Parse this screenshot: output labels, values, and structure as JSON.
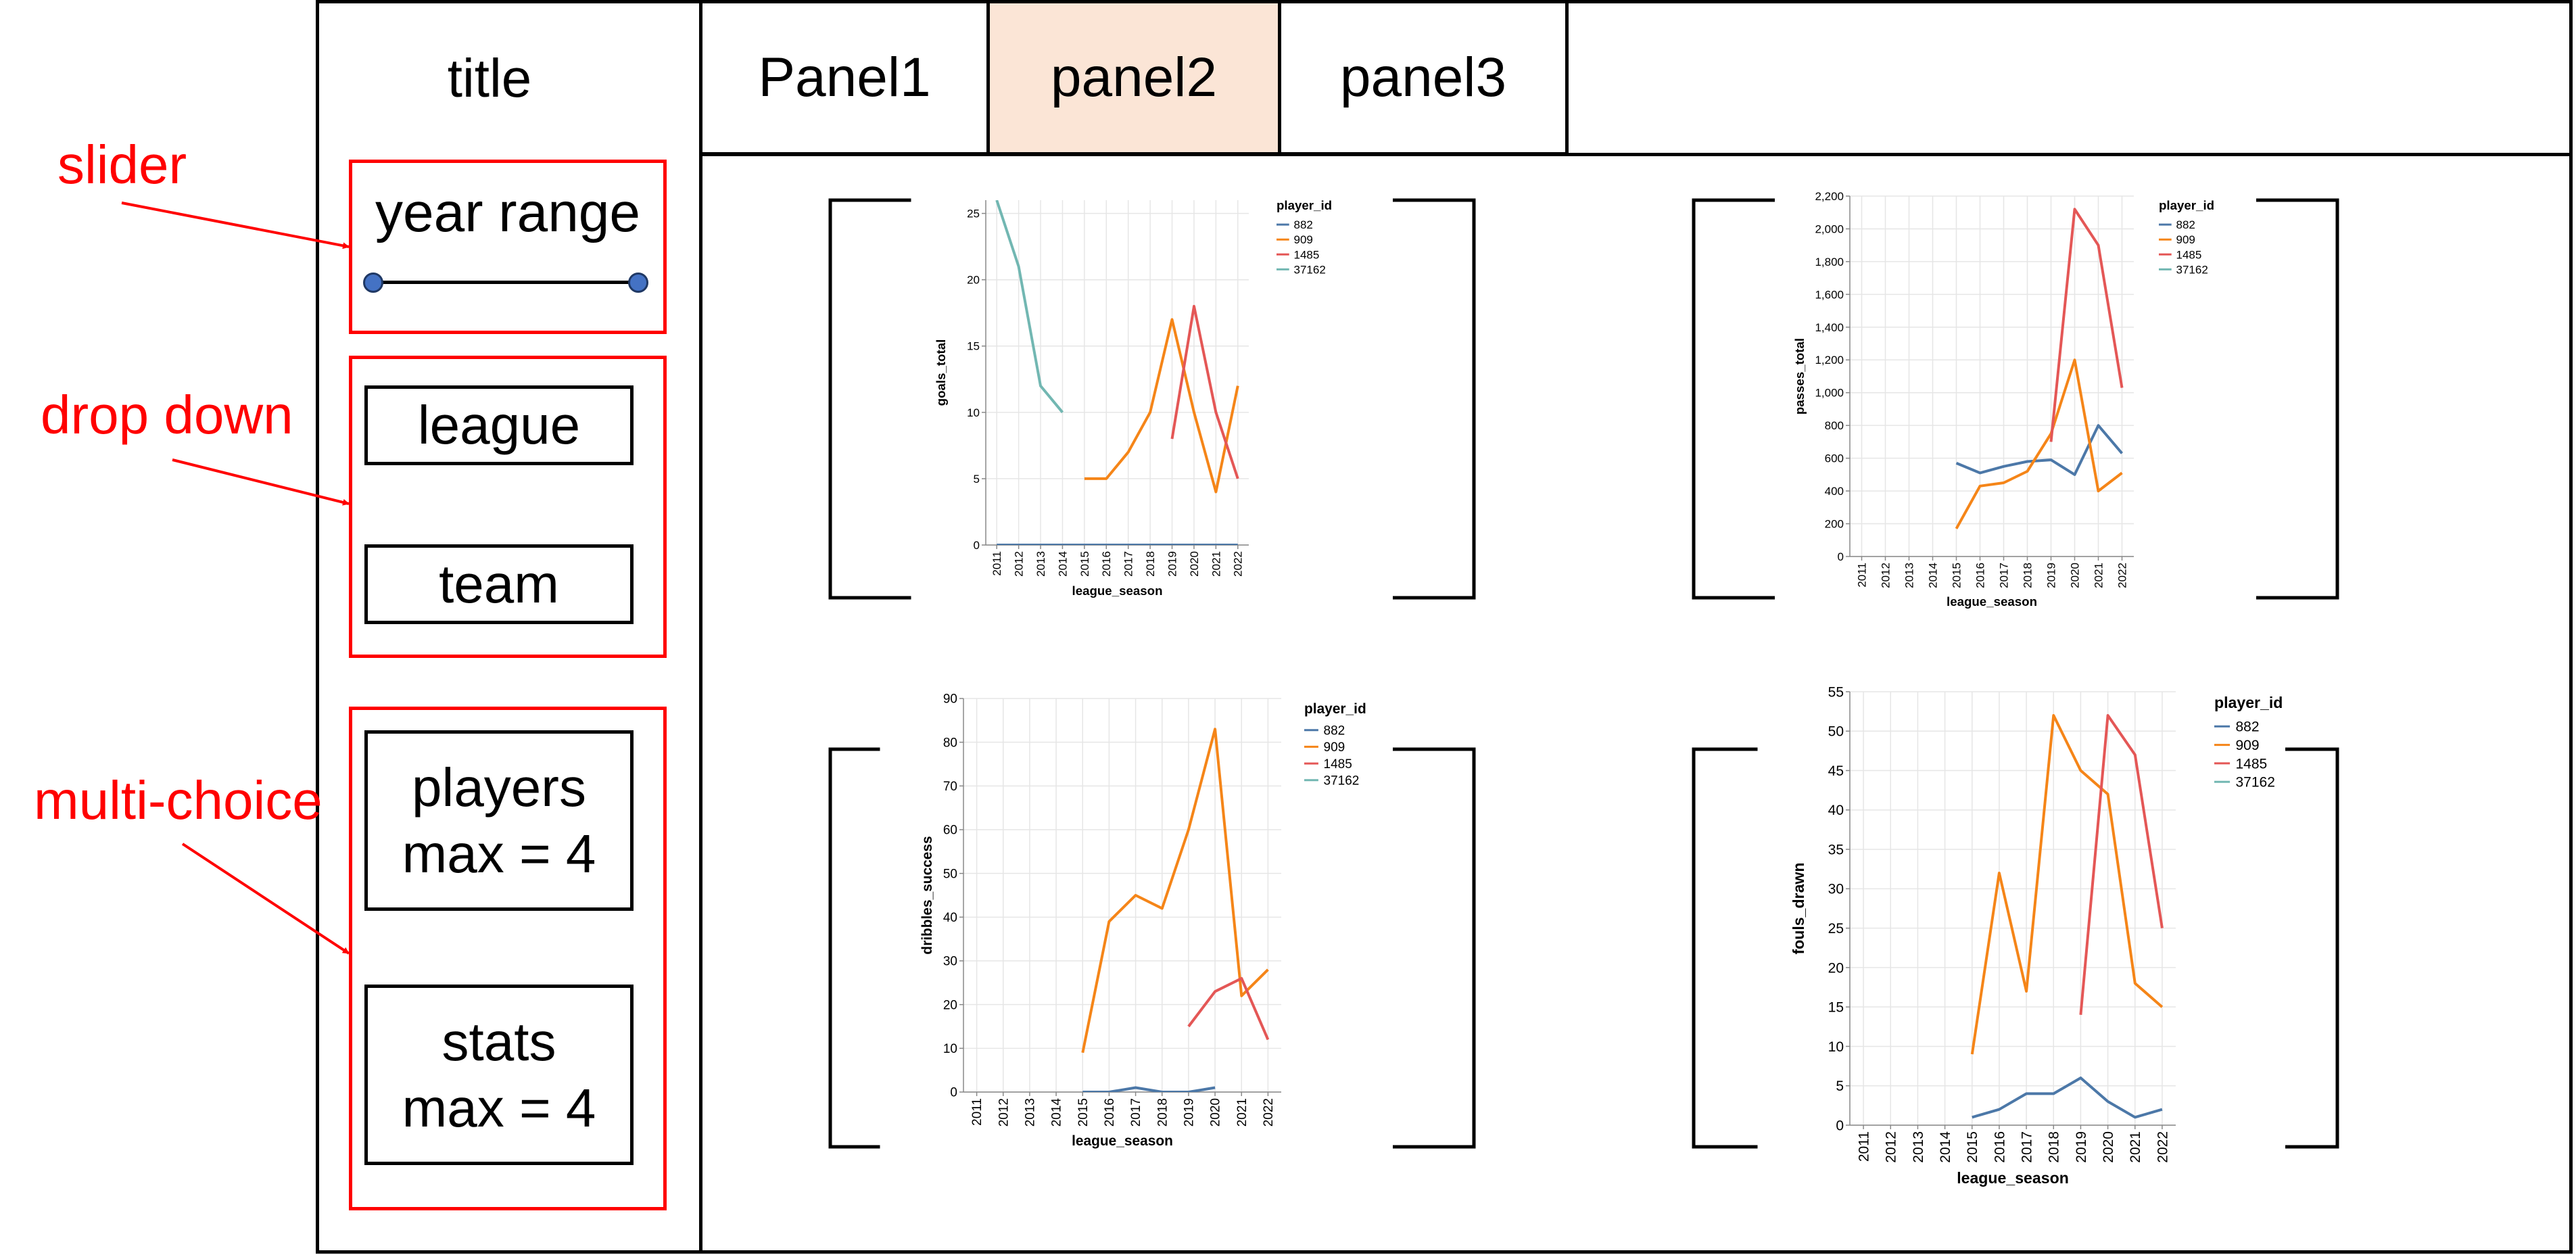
{
  "app": {
    "title": "title"
  },
  "tabs": [
    {
      "label": "Panel1",
      "active": false
    },
    {
      "label": "panel2",
      "active": true
    },
    {
      "label": "panel3",
      "active": false
    }
  ],
  "controls": {
    "slider_label": "year range",
    "dropdown": {
      "league": "league",
      "team": "team"
    },
    "multi": {
      "players": {
        "line1": "players",
        "line2": "max = 4"
      },
      "stats": {
        "line1": "stats",
        "line2": "max = 4"
      }
    }
  },
  "annotations": {
    "slider": "slider",
    "dropdown": "drop down",
    "multi": "multi-choice"
  },
  "colors": {
    "accent_red": "#ff0000",
    "active_tab": "#fbe5d6",
    "series": [
      "#4c78a8",
      "#f58518",
      "#e45756",
      "#72b7b2"
    ]
  },
  "chart_data": [
    {
      "type": "line",
      "xlabel": "league_season",
      "ylabel": "goals_total",
      "legend_title": "player_id",
      "legend_position": "top-right",
      "grid": true,
      "categories": [
        "2011",
        "2012",
        "2013",
        "2014",
        "2015",
        "2016",
        "2017",
        "2018",
        "2019",
        "2020",
        "2021",
        "2022"
      ],
      "ylim": [
        0,
        26
      ],
      "yticks": [
        0,
        5,
        10,
        15,
        20,
        25
      ],
      "yticklabels": [
        "0",
        "5",
        "10",
        "15",
        "20",
        "25"
      ],
      "series": [
        {
          "name": "882",
          "values": [
            0,
            0,
            0,
            0,
            0,
            0,
            0,
            0,
            0,
            0,
            0,
            0
          ]
        },
        {
          "name": "909",
          "values": [
            null,
            null,
            null,
            null,
            5,
            5,
            7,
            10,
            17,
            10,
            4,
            12
          ]
        },
        {
          "name": "1485",
          "values": [
            null,
            null,
            null,
            null,
            null,
            null,
            null,
            null,
            8,
            18,
            10,
            5
          ]
        },
        {
          "name": "37162",
          "values": [
            26,
            21,
            12,
            10,
            null,
            null,
            null,
            null,
            null,
            null,
            null,
            null
          ]
        }
      ]
    },
    {
      "type": "line",
      "xlabel": "league_season",
      "ylabel": "passes_total",
      "legend_title": "player_id",
      "legend_position": "top-right",
      "grid": true,
      "categories": [
        "2011",
        "2012",
        "2013",
        "2014",
        "2015",
        "2016",
        "2017",
        "2018",
        "2019",
        "2020",
        "2021",
        "2022"
      ],
      "ylim": [
        0,
        2200
      ],
      "yticks": [
        0,
        200,
        400,
        600,
        800,
        1000,
        1200,
        1400,
        1600,
        1800,
        2000,
        2200
      ],
      "yticklabels": [
        "0",
        "200",
        "400",
        "600",
        "800",
        "1,000",
        "1,200",
        "1,400",
        "1,600",
        "1,800",
        "2,000",
        "2,200"
      ],
      "series": [
        {
          "name": "882",
          "values": [
            null,
            null,
            null,
            null,
            570,
            510,
            550,
            580,
            590,
            500,
            800,
            630
          ]
        },
        {
          "name": "909",
          "values": [
            null,
            null,
            null,
            null,
            170,
            430,
            450,
            520,
            750,
            1200,
            400,
            510
          ]
        },
        {
          "name": "1485",
          "values": [
            null,
            null,
            null,
            null,
            null,
            null,
            null,
            null,
            700,
            2120,
            1900,
            1030
          ]
        },
        {
          "name": "37162",
          "values": [
            null,
            null,
            null,
            null,
            null,
            null,
            null,
            null,
            null,
            null,
            null,
            null
          ]
        }
      ]
    },
    {
      "type": "line",
      "xlabel": "league_season",
      "ylabel": "dribbles_success",
      "legend_title": "player_id",
      "legend_position": "top-right",
      "grid": true,
      "categories": [
        "2011",
        "2012",
        "2013",
        "2014",
        "2015",
        "2016",
        "2017",
        "2018",
        "2019",
        "2020",
        "2021",
        "2022"
      ],
      "ylim": [
        0,
        90
      ],
      "yticks": [
        0,
        10,
        20,
        30,
        40,
        50,
        60,
        70,
        80,
        90
      ],
      "yticklabels": [
        "0",
        "10",
        "20",
        "30",
        "40",
        "50",
        "60",
        "70",
        "80",
        "90"
      ],
      "series": [
        {
          "name": "882",
          "values": [
            null,
            null,
            null,
            null,
            0,
            0,
            1,
            0,
            0,
            1,
            null,
            null
          ]
        },
        {
          "name": "909",
          "values": [
            null,
            null,
            null,
            null,
            9,
            39,
            45,
            42,
            60,
            83,
            22,
            28
          ]
        },
        {
          "name": "1485",
          "values": [
            null,
            null,
            null,
            null,
            null,
            null,
            null,
            null,
            15,
            23,
            26,
            12
          ]
        },
        {
          "name": "37162",
          "values": [
            null,
            null,
            null,
            null,
            null,
            null,
            null,
            null,
            null,
            null,
            null,
            null
          ]
        }
      ]
    },
    {
      "type": "line",
      "xlabel": "league_season",
      "ylabel": "fouls_drawn",
      "legend_title": "player_id",
      "legend_position": "top-right",
      "grid": true,
      "categories": [
        "2011",
        "2012",
        "2013",
        "2014",
        "2015",
        "2016",
        "2017",
        "2018",
        "2019",
        "2020",
        "2021",
        "2022"
      ],
      "ylim": [
        0,
        55
      ],
      "yticks": [
        0,
        5,
        10,
        15,
        20,
        25,
        30,
        35,
        40,
        45,
        50,
        55
      ],
      "yticklabels": [
        "0",
        "5",
        "10",
        "15",
        "20",
        "25",
        "30",
        "35",
        "40",
        "45",
        "50",
        "55"
      ],
      "series": [
        {
          "name": "882",
          "values": [
            null,
            null,
            null,
            null,
            1,
            2,
            4,
            4,
            6,
            3,
            1,
            2
          ]
        },
        {
          "name": "909",
          "values": [
            null,
            null,
            null,
            null,
            9,
            32,
            17,
            52,
            45,
            42,
            18,
            15
          ]
        },
        {
          "name": "1485",
          "values": [
            null,
            null,
            null,
            null,
            null,
            null,
            null,
            null,
            14,
            52,
            47,
            25
          ]
        },
        {
          "name": "37162",
          "values": [
            null,
            null,
            null,
            null,
            null,
            null,
            null,
            null,
            null,
            null,
            null,
            null
          ]
        }
      ]
    }
  ]
}
